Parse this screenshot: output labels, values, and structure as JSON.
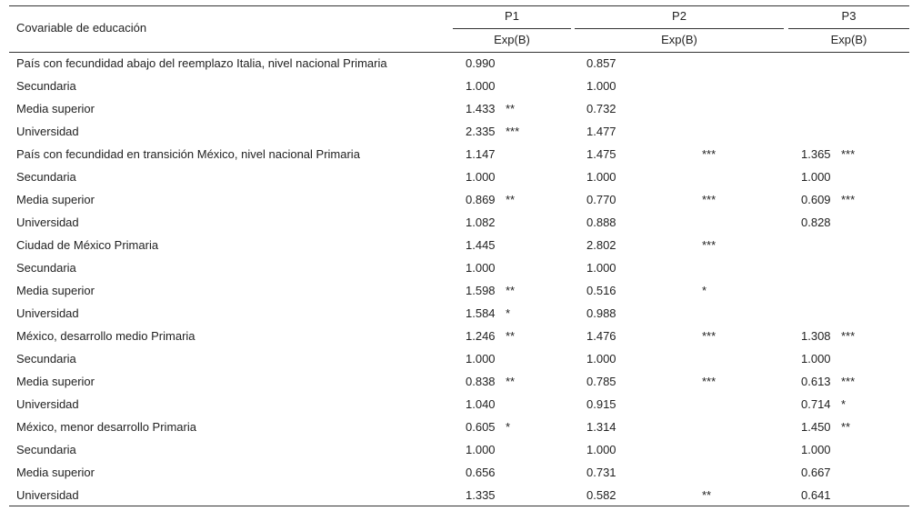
{
  "header": {
    "covariable": "Covariable  de educación",
    "groups": [
      "P1",
      "P2",
      "P3"
    ],
    "sub": [
      "Exp(B)",
      "Exp(B)",
      "Exp(B)"
    ]
  },
  "rows": [
    {
      "label": "País con fecundidad abajo del reemplazo Italia, nivel nacional Primaria",
      "p1": "0.990",
      "p2": "0.857"
    },
    {
      "label": "Secundaria",
      "p1": "1.000",
      "p2": "1.000"
    },
    {
      "label": "Media superior",
      "p1": "1.433",
      "p1_sig": "**",
      "p2": "0.732"
    },
    {
      "label": "Universidad",
      "p1": "2.335",
      "p1_sig": "***",
      "p2": "1.477"
    },
    {
      "label": "País con fecundidad en transición México, nivel nacional Primaria",
      "p1": "1.147",
      "p2": "1.475",
      "p2_sig": "***",
      "p3": "1.365",
      "p3_sig": "***"
    },
    {
      "label": "Secundaria",
      "p1": "1.000",
      "p2": "1.000",
      "p3": "1.000"
    },
    {
      "label": "Media superior",
      "p1": "0.869",
      "p1_sig": "**",
      "p2": "0.770",
      "p2_sig": "***",
      "p3": "0.609",
      "p3_sig": "***"
    },
    {
      "label": "Universidad",
      "p1": "1.082",
      "p2": "0.888",
      "p3": "0.828"
    },
    {
      "label": "Ciudad de México Primaria",
      "p1": "1.445",
      "p2": "2.802",
      "p2_sig": "***"
    },
    {
      "label": "Secundaria",
      "p1": "1.000",
      "p2": "1.000"
    },
    {
      "label": "Media superior",
      "p1": "1.598",
      "p1_sig": "**",
      "p2": "0.516",
      "p2_sig": "*"
    },
    {
      "label": "Universidad",
      "p1": "1.584",
      "p1_sig": "*",
      "p2": "0.988"
    },
    {
      "label": "México, desarrollo medio Primaria",
      "p1": "1.246",
      "p1_sig": "**",
      "p2": "1.476",
      "p2_sig": "***",
      "p3": "1.308",
      "p3_sig": "***"
    },
    {
      "label": "Secundaria",
      "p1": "1.000",
      "p2": "1.000",
      "p3": "1.000"
    },
    {
      "label": "Media superior",
      "p1": "0.838",
      "p1_sig": "**",
      "p2": "0.785",
      "p2_sig": "***",
      "p3": "0.613",
      "p3_sig": "***"
    },
    {
      "label": "Universidad",
      "p1": "1.040",
      "p2": "0.915",
      "p3": "0.714",
      "p3_sig": "*"
    },
    {
      "label": "México, menor desarrollo Primaria",
      "p1": "0.605",
      "p1_sig": "*",
      "p2": "1.314",
      "p3": "1.450",
      "p3_sig": "**"
    },
    {
      "label": "Secundaria",
      "p1": "1.000",
      "p2": "1.000",
      "p3": "1.000"
    },
    {
      "label": "Media superior",
      "p1": "0.656",
      "p2": "0.731",
      "p3": "0.667"
    },
    {
      "label": "Universidad",
      "p1": "1.335",
      "p2": "0.582",
      "p2_sig": "**",
      "p3": "0.641"
    }
  ]
}
